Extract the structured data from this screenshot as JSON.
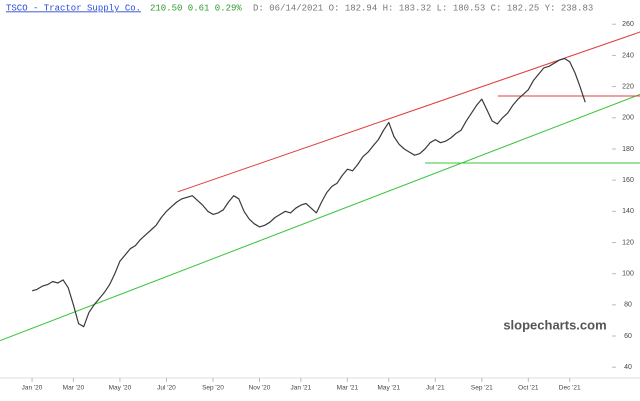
{
  "chart_data": {
    "type": "line",
    "header": {
      "symbol": "TSCO - Tractor Supply Co.",
      "quote": "210.50 0.61 0.29%",
      "details": "D: 06/14/2021 O: 182.94 H: 183.32 L: 180.53 C: 182.25 Y: 238.83"
    },
    "watermark": "slopecharts.com",
    "categories": [
      "Jan '20",
      null,
      null,
      null,
      null,
      null,
      null,
      null,
      "Mar '20",
      null,
      null,
      null,
      null,
      null,
      null,
      null,
      null,
      "May '20",
      null,
      null,
      null,
      null,
      null,
      null,
      null,
      null,
      "Jul '20",
      null,
      null,
      null,
      null,
      null,
      null,
      null,
      null,
      "Sep '20",
      null,
      null,
      null,
      null,
      null,
      null,
      null,
      null,
      "Nov '20",
      null,
      null,
      null,
      null,
      null,
      null,
      null,
      "Jan '21",
      null,
      null,
      null,
      null,
      null,
      null,
      null,
      null,
      "Mar '21",
      null,
      null,
      null,
      null,
      null,
      null,
      null,
      "May '21",
      null,
      null,
      null,
      null,
      null,
      null,
      null,
      null,
      "Jul '21",
      null,
      null,
      null,
      null,
      null,
      null,
      null,
      null,
      "Sep '21",
      null,
      null,
      null,
      null,
      null,
      null,
      null,
      null,
      "Oct '21",
      null,
      null,
      null,
      null,
      null,
      null,
      null,
      "Dec '21",
      null,
      null,
      null
    ],
    "series": [
      {
        "name": "TSCO",
        "color": "#3a3a3a",
        "values": [
          89,
          90,
          92,
          93,
          95,
          94,
          96,
          91,
          80,
          68,
          66,
          75,
          80,
          84,
          88,
          93,
          100,
          108,
          112,
          116,
          118,
          122,
          125,
          128,
          131,
          136,
          140,
          143,
          146,
          148,
          149,
          150,
          147,
          144,
          140,
          138,
          139,
          141,
          146,
          150,
          148,
          140,
          135,
          132,
          130,
          131,
          133,
          136,
          138,
          140,
          139,
          142,
          144,
          145,
          142,
          139,
          146,
          152,
          156,
          158,
          163,
          167,
          166,
          170,
          175,
          178,
          182,
          186,
          192,
          197,
          188,
          183,
          180,
          178,
          176,
          177,
          180,
          184,
          186,
          184,
          185,
          187,
          190,
          192,
          198,
          203,
          208,
          212,
          205,
          198,
          196,
          200,
          203,
          208,
          212,
          215,
          218,
          224,
          228,
          232,
          233,
          235,
          237,
          238,
          236,
          229,
          220,
          210
        ]
      }
    ],
    "lines": [
      {
        "color": "#e03c3c",
        "from": [
          28.2,
          152.5
        ],
        "to": [
          117.6,
          255
        ]
      },
      {
        "color": "#3cc43c",
        "from": [
          -6.2,
          57
        ],
        "to": [
          117.6,
          215
        ]
      },
      {
        "color": "#e03c3c",
        "from": [
          90.1,
          214
        ],
        "to": [
          117.6,
          214
        ]
      },
      {
        "color": "#3cc43c",
        "from": [
          76,
          171
        ],
        "to": [
          117.6,
          171
        ]
      }
    ],
    "xlim": [
      -6.2,
      117.6
    ],
    "ylim": [
      35,
      264
    ],
    "yticks": [
      40,
      60,
      80,
      100,
      120,
      140,
      160,
      180,
      200,
      220,
      240,
      260
    ]
  }
}
